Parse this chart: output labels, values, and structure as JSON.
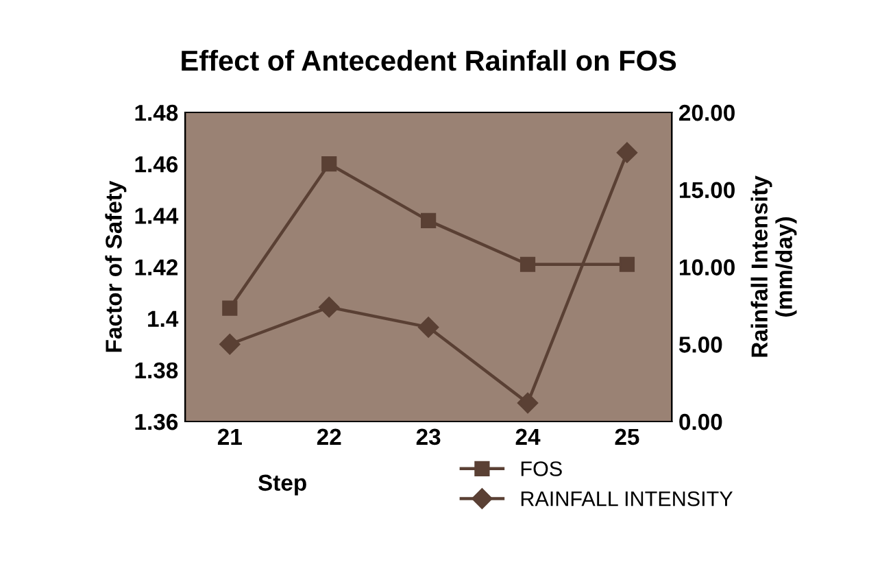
{
  "chart_data": {
    "type": "line",
    "title": "Effect of Antecedent Rainfall on FOS",
    "xlabel": "Step",
    "ylabel": "Factor of Safety",
    "y2label": "Rainfall Intensity\n(mm/day)",
    "categories": [
      "21",
      "22",
      "23",
      "24",
      "25"
    ],
    "series": [
      {
        "name": "FOS",
        "color": "#5a4034",
        "marker": "square",
        "values": [
          1.404,
          1.46,
          1.438,
          1.421,
          1.421
        ]
      },
      {
        "name": "RAINFALL INTENSITY",
        "color": "#5a4034",
        "marker": "diamond",
        "axis": "y2",
        "values": [
          5.0,
          7.4,
          6.1,
          1.2,
          17.4
        ]
      }
    ],
    "ylim": [
      1.36,
      1.48
    ],
    "yticks": [
      1.36,
      1.38,
      1.4,
      1.42,
      1.44,
      1.46,
      1.48
    ],
    "y2lim": [
      0,
      20
    ],
    "y2ticks": [
      {
        "value": 0,
        "label": "0.00"
      },
      {
        "value": 5,
        "label": "5.00"
      },
      {
        "value": 10,
        "label": "10.00"
      },
      {
        "value": 15,
        "label": "15.00"
      },
      {
        "value": 20,
        "label": "20.00"
      }
    ],
    "grid": false,
    "legend": "bottom right",
    "line_style": "solid"
  }
}
